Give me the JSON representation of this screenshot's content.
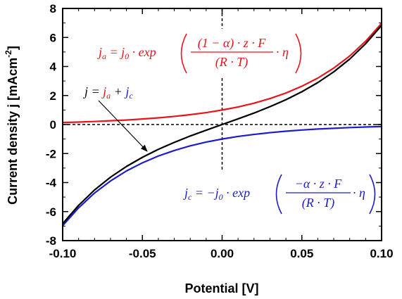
{
  "chart_data": {
    "type": "line",
    "xlabel": "Potential [V]",
    "ylabel": "Current density j [mAcm",
    "ylabel_sup": "-2",
    "ylabel_end": "]",
    "xlim": [
      -0.1,
      0.1
    ],
    "ylim": [
      -8,
      8
    ],
    "xticks": [
      "-0.10",
      "-0.05",
      "0.00",
      "0.05",
      "0.10"
    ],
    "xtick_values": [
      -0.1,
      -0.05,
      0.0,
      0.05,
      0.1
    ],
    "yticks": [
      "-8",
      "-6",
      "-4",
      "-2",
      "0",
      "2",
      "4",
      "6",
      "8"
    ],
    "ytick_values": [
      -8,
      -6,
      -4,
      -2,
      0,
      2,
      4,
      6,
      8
    ],
    "x": [
      -0.1,
      -0.09,
      -0.08,
      -0.07,
      -0.06,
      -0.05,
      -0.04,
      -0.03,
      -0.02,
      -0.01,
      0.0,
      0.01,
      0.02,
      0.03,
      0.04,
      0.05,
      0.06,
      0.07,
      0.08,
      0.09,
      0.1
    ],
    "series": [
      {
        "name": "j_a",
        "color": "#e8141c",
        "values": [
          0.14,
          0.17,
          0.21,
          0.26,
          0.31,
          0.38,
          0.46,
          0.56,
          0.68,
          0.82,
          1.0,
          1.21,
          1.47,
          1.79,
          2.17,
          2.64,
          3.2,
          3.89,
          4.72,
          5.74,
          6.97
        ]
      },
      {
        "name": "j_c",
        "color": "#1c1ccc",
        "values": [
          -6.97,
          -5.74,
          -4.72,
          -3.89,
          -3.2,
          -2.64,
          -2.17,
          -1.79,
          -1.47,
          -1.21,
          -1.0,
          -0.82,
          -0.68,
          -0.56,
          -0.46,
          -0.38,
          -0.31,
          -0.26,
          -0.21,
          -0.17,
          -0.14
        ]
      },
      {
        "name": "j",
        "color": "#000000",
        "values": [
          -6.83,
          -5.57,
          -4.51,
          -3.63,
          -2.89,
          -2.26,
          -1.71,
          -1.23,
          -0.79,
          -0.39,
          0.0,
          0.39,
          0.79,
          1.23,
          1.71,
          2.26,
          2.89,
          3.63,
          4.51,
          5.57,
          6.83
        ]
      }
    ],
    "annotations": {
      "ja_equation": {
        "lhs": "j",
        "lhs_sub": "a",
        "rhs_prefix": " = j",
        "rhs_sub": "0",
        "rhs_mid": " · exp",
        "numerator": "(1 − α) · z · F",
        "denominator": "(R · T)",
        "tail": "· η"
      },
      "jc_equation": {
        "lhs": "j",
        "lhs_sub": "c",
        "rhs_prefix": " = −j",
        "rhs_sub": "0",
        "rhs_mid": " · exp",
        "numerator": "−α · z · F",
        "denominator": "(R · T)",
        "tail": "· η"
      },
      "j_equation": {
        "lhs": "j = ",
        "a": "j",
        "a_sub": "a",
        "plus": " + ",
        "c": "j",
        "c_sub": "c"
      }
    },
    "grid": false,
    "legend": "none"
  }
}
